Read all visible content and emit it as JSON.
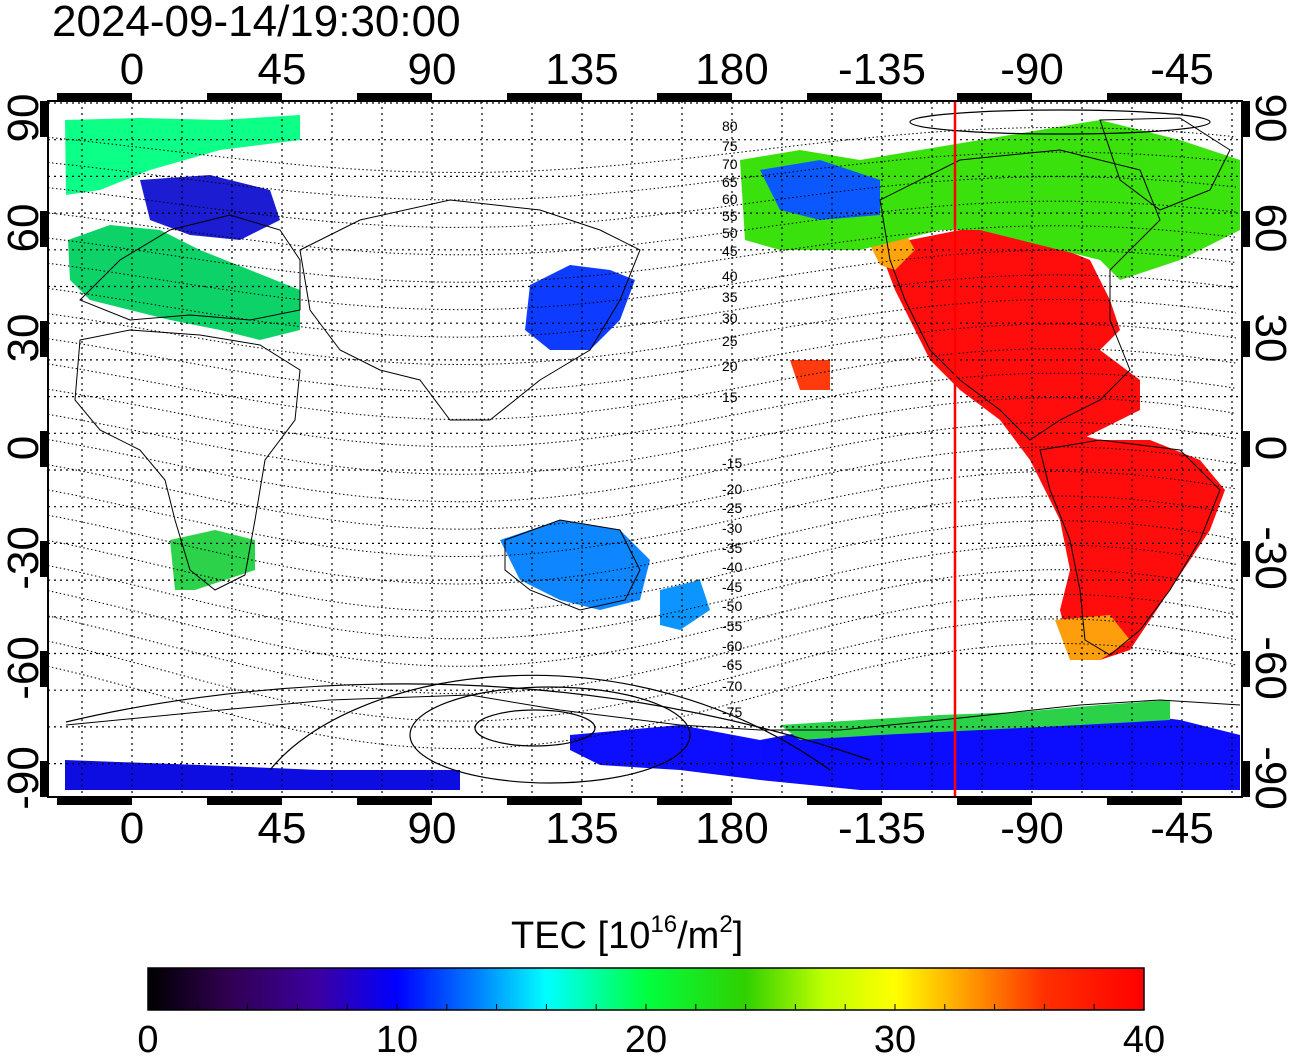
{
  "timestamp": "2024-09-14/19:30:00",
  "map": {
    "lon_tick_labels": [
      "0",
      "45",
      "90",
      "135",
      "180",
      "-135",
      "-90",
      "-45"
    ],
    "lat_tick_labels": [
      "90",
      "60",
      "30",
      "0",
      "-30",
      "-60",
      "-90"
    ],
    "contour_labels": [
      "80",
      "75",
      "70",
      "65",
      "60",
      "55",
      "50",
      "45",
      "40",
      "35",
      "30",
      "25",
      "20",
      "15",
      "-15",
      "-20",
      "-25",
      "-30",
      "-35",
      "-40",
      "-45",
      "-50",
      "-55",
      "-60",
      "-65",
      "-70",
      "-75"
    ],
    "marker_line_color": "#ff0000"
  },
  "colorbar": {
    "title_prefix": "TEC  [10",
    "title_exp": "16",
    "title_mid": "/m",
    "title_exp2": "2",
    "title_suffix": "]",
    "tick_labels": [
      "0",
      "10",
      "20",
      "30",
      "40"
    ],
    "min": 0,
    "max": 40,
    "colormap": [
      "#000000",
      "#3a0060",
      "#1a00c8",
      "#0033ff",
      "#00a0ff",
      "#00ffff",
      "#00ff80",
      "#00e000",
      "#a0ff00",
      "#ffff00",
      "#ff9900",
      "#ff3300",
      "#ff0000"
    ]
  }
}
